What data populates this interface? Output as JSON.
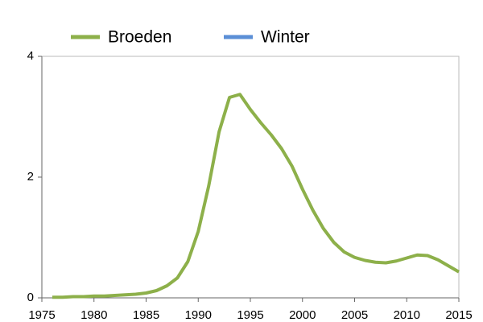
{
  "chart_data": {
    "type": "line",
    "x": [
      1976,
      1977,
      1978,
      1979,
      1980,
      1981,
      1982,
      1983,
      1984,
      1985,
      1986,
      1987,
      1988,
      1989,
      1990,
      1991,
      1992,
      1993,
      1994,
      1995,
      1996,
      1997,
      1998,
      1999,
      2000,
      2001,
      2002,
      2003,
      2004,
      2005,
      2006,
      2007,
      2008,
      2009,
      2010,
      2011,
      2012,
      2013,
      2014,
      2015
    ],
    "series": [
      {
        "name": "Broeden",
        "color": "#8db04a",
        "values": [
          0.01,
          0.01,
          0.02,
          0.02,
          0.03,
          0.03,
          0.04,
          0.05,
          0.06,
          0.08,
          0.12,
          0.2,
          0.33,
          0.6,
          1.1,
          1.85,
          2.75,
          3.32,
          3.37,
          3.12,
          2.9,
          2.7,
          2.47,
          2.18,
          1.8,
          1.45,
          1.15,
          0.92,
          0.76,
          0.67,
          0.62,
          0.59,
          0.58,
          0.61,
          0.66,
          0.71,
          0.7,
          0.63,
          0.53,
          0.43
        ]
      },
      {
        "name": "Winter",
        "color": "#5b8fd6",
        "values": [
          null,
          null,
          null,
          null,
          null,
          null,
          null,
          null,
          null,
          null,
          null,
          null,
          null,
          null,
          null,
          null,
          null,
          null,
          null,
          null,
          null,
          null,
          null,
          null,
          null,
          null,
          null,
          null,
          null,
          null,
          null,
          null,
          null,
          null,
          null,
          null,
          null,
          null,
          null,
          null
        ]
      }
    ],
    "xlim": [
      1975,
      2015
    ],
    "xticks": [
      1975,
      1980,
      1985,
      1990,
      1995,
      2000,
      2005,
      2010,
      2015
    ],
    "ylim": [
      0,
      4
    ],
    "yticks": [
      0,
      2,
      4
    ]
  }
}
